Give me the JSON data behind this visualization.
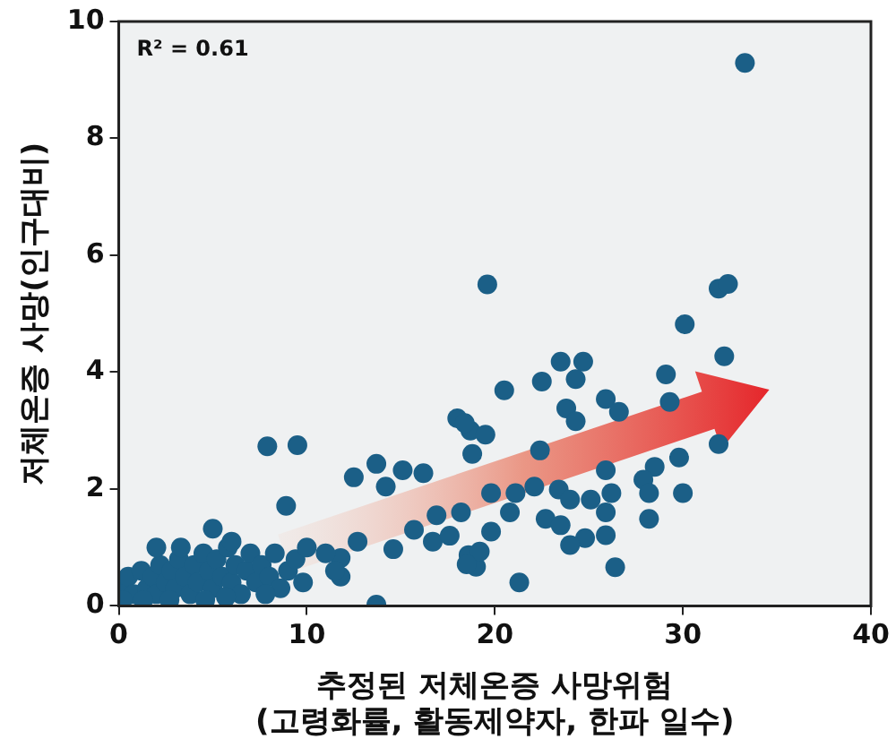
{
  "chart_data": {
    "type": "scatter",
    "xlabel": "추정된 저체온증 사망위험\n(고령화률, 활동제약자, 한파 일수)",
    "ylabel": "저체온증 사망(인구대비)",
    "annotations": [
      "R² = 0.61"
    ],
    "xlim": [
      0,
      40
    ],
    "xticks": [
      0,
      10,
      20,
      30,
      40
    ],
    "ylim": [
      0,
      10
    ],
    "yticks": [
      0,
      2,
      4,
      6,
      8,
      10
    ],
    "grid": false,
    "legend": false,
    "marker": "circle",
    "series": [
      {
        "color": "#1b5f87",
        "x": [
          19.6,
          7.9,
          9.5,
          8.9,
          12.5,
          13.7,
          14.2,
          15.1,
          16.2,
          18.0,
          18.7,
          19.5,
          13.7,
          5.0,
          11.8,
          11.8,
          12.7,
          14.6,
          15.7,
          16.7,
          17.6,
          18.6,
          19.0,
          16.9,
          33.3,
          31.9,
          32.4,
          30.1,
          32.2,
          29.1,
          23.5,
          24.7,
          24.3,
          22.5,
          20.5,
          25.9,
          23.8,
          26.6,
          24.3,
          18.4,
          29.3,
          18.8,
          22.4,
          31.9,
          29.8,
          25.9,
          28.5,
          27.9,
          28.2,
          30.0,
          22.1,
          23.4,
          24.0,
          25.1,
          26.2,
          25.9,
          22.7,
          23.5,
          28.2,
          24.8,
          25.9,
          24.0,
          26.4,
          21.3,
          20.8,
          19.8,
          19.2,
          18.5,
          21.1,
          18.2,
          19.8,
          0.3,
          0.5,
          0.8,
          1.2,
          1.5,
          1.8,
          2.0,
          2.2,
          2.5,
          2.8,
          3.0,
          3.2,
          3.5,
          3.8,
          4.0,
          4.2,
          4.5,
          4.8,
          5.0,
          5.2,
          5.5,
          5.8,
          6.0,
          6.2,
          6.5,
          6.8,
          7.0,
          7.3,
          7.6,
          8.0,
          8.3,
          8.6,
          9.0,
          9.4,
          10.0,
          0.2,
          1.3,
          2.7,
          4.6,
          5.7,
          7.8,
          9.8,
          11.0,
          11.5,
          6.0,
          3.3,
          2.0
        ],
        "values": [
          5.5,
          2.73,
          2.75,
          1.71,
          2.2,
          2.43,
          2.04,
          2.32,
          2.27,
          3.21,
          3.0,
          2.93,
          0.02,
          1.32,
          0.82,
          0.5,
          1.1,
          0.97,
          1.3,
          1.1,
          1.2,
          0.87,
          0.67,
          1.55,
          9.29,
          5.43,
          5.51,
          4.82,
          4.27,
          3.96,
          4.18,
          4.18,
          3.88,
          3.84,
          3.69,
          3.54,
          3.38,
          3.32,
          3.16,
          3.13,
          3.49,
          2.6,
          2.66,
          2.77,
          2.54,
          2.32,
          2.38,
          2.16,
          1.93,
          1.93,
          2.04,
          1.99,
          1.82,
          1.82,
          1.93,
          1.6,
          1.49,
          1.38,
          1.49,
          1.16,
          1.21,
          1.04,
          0.66,
          0.4,
          1.6,
          1.27,
          0.93,
          0.71,
          1.93,
          1.6,
          1.93,
          0.3,
          0.5,
          0.2,
          0.6,
          0.3,
          0.5,
          0.2,
          0.7,
          0.4,
          0.6,
          0.3,
          0.8,
          0.5,
          0.2,
          0.7,
          0.4,
          0.9,
          0.6,
          0.3,
          0.8,
          0.5,
          1.0,
          0.4,
          0.7,
          0.2,
          0.6,
          0.9,
          0.4,
          0.7,
          0.5,
          0.9,
          0.3,
          0.6,
          0.8,
          1.0,
          0.1,
          0.1,
          0.1,
          0.1,
          0.15,
          0.2,
          0.4,
          0.9,
          0.6,
          1.1,
          1.0,
          1.0
        ]
      }
    ]
  }
}
